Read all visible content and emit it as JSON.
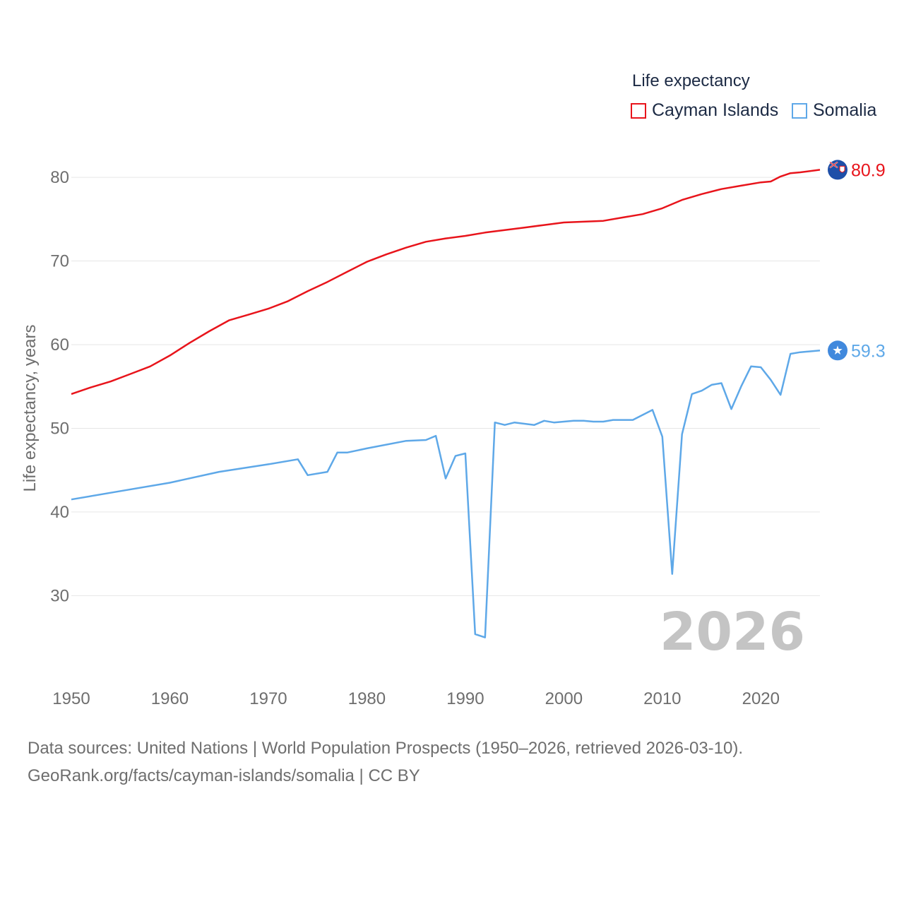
{
  "legend": {
    "title": "Life expectancy",
    "items": [
      {
        "label": "Cayman Islands",
        "color": "#e8141b"
      },
      {
        "label": "Somalia",
        "color": "#5ea8e8"
      }
    ]
  },
  "year_watermark": "2026",
  "source": {
    "line1": "Data sources: United Nations | World Population Prospects (1950–2026, retrieved 2026-03-10).",
    "line2": "GeoRank.org/facts/cayman-islands/somalia | CC BY"
  },
  "chart_data": {
    "type": "line",
    "title": "Life expectancy",
    "xlabel": "",
    "ylabel": "Life expectancy, years",
    "xlim": [
      1950,
      2026
    ],
    "ylim": [
      21,
      86
    ],
    "x_ticks": [
      1950,
      1960,
      1970,
      1980,
      1990,
      2000,
      2010,
      2020
    ],
    "y_ticks": [
      30,
      40,
      50,
      60,
      70,
      80
    ],
    "grid": true,
    "legend_position": "top-right",
    "series": [
      {
        "name": "Cayman Islands",
        "color": "#e8141b",
        "end_label": "80.9",
        "flag_icon": "cayman-islands-flag-icon",
        "points": [
          [
            1950,
            54.1
          ],
          [
            1952,
            54.9
          ],
          [
            1954,
            55.6
          ],
          [
            1956,
            56.5
          ],
          [
            1958,
            57.4
          ],
          [
            1960,
            58.7
          ],
          [
            1962,
            60.2
          ],
          [
            1964,
            61.6
          ],
          [
            1966,
            62.9
          ],
          [
            1968,
            63.6
          ],
          [
            1970,
            64.3
          ],
          [
            1972,
            65.2
          ],
          [
            1974,
            66.4
          ],
          [
            1976,
            67.5
          ],
          [
            1978,
            68.7
          ],
          [
            1980,
            69.9
          ],
          [
            1982,
            70.8
          ],
          [
            1984,
            71.6
          ],
          [
            1986,
            72.3
          ],
          [
            1988,
            72.7
          ],
          [
            1990,
            73.0
          ],
          [
            1992,
            73.4
          ],
          [
            1994,
            73.7
          ],
          [
            1996,
            74.0
          ],
          [
            1998,
            74.3
          ],
          [
            2000,
            74.6
          ],
          [
            2002,
            74.7
          ],
          [
            2004,
            74.8
          ],
          [
            2006,
            75.2
          ],
          [
            2008,
            75.6
          ],
          [
            2010,
            76.3
          ],
          [
            2012,
            77.3
          ],
          [
            2014,
            78.0
          ],
          [
            2016,
            78.6
          ],
          [
            2018,
            79.0
          ],
          [
            2020,
            79.4
          ],
          [
            2021,
            79.5
          ],
          [
            2022,
            80.1
          ],
          [
            2023,
            80.5
          ],
          [
            2024,
            80.6
          ],
          [
            2026,
            80.9
          ]
        ]
      },
      {
        "name": "Somalia",
        "color": "#5ea8e8",
        "end_label": "59.3",
        "flag_icon": "somalia-flag-icon",
        "points": [
          [
            1950,
            41.5
          ],
          [
            1955,
            42.5
          ],
          [
            1960,
            43.5
          ],
          [
            1965,
            44.8
          ],
          [
            1970,
            45.7
          ],
          [
            1973,
            46.3
          ],
          [
            1974,
            44.4
          ],
          [
            1976,
            44.8
          ],
          [
            1977,
            47.1
          ],
          [
            1978,
            47.1
          ],
          [
            1980,
            47.6
          ],
          [
            1984,
            48.5
          ],
          [
            1986,
            48.6
          ],
          [
            1987,
            49.1
          ],
          [
            1988,
            44.0
          ],
          [
            1989,
            46.7
          ],
          [
            1990,
            47.0
          ],
          [
            1991,
            25.4
          ],
          [
            1992,
            25.0
          ],
          [
            1993,
            50.7
          ],
          [
            1994,
            50.4
          ],
          [
            1995,
            50.7
          ],
          [
            1997,
            50.4
          ],
          [
            1998,
            50.9
          ],
          [
            1999,
            50.7
          ],
          [
            2001,
            50.9
          ],
          [
            2002,
            50.9
          ],
          [
            2003,
            50.8
          ],
          [
            2004,
            50.8
          ],
          [
            2005,
            51.0
          ],
          [
            2007,
            51.0
          ],
          [
            2009,
            52.2
          ],
          [
            2010,
            49.0
          ],
          [
            2011,
            32.6
          ],
          [
            2012,
            49.3
          ],
          [
            2013,
            54.1
          ],
          [
            2014,
            54.5
          ],
          [
            2015,
            55.2
          ],
          [
            2016,
            55.4
          ],
          [
            2017,
            52.3
          ],
          [
            2018,
            55.0
          ],
          [
            2019,
            57.4
          ],
          [
            2020,
            57.3
          ],
          [
            2021,
            55.8
          ],
          [
            2022,
            54.0
          ],
          [
            2023,
            58.9
          ],
          [
            2024,
            59.1
          ],
          [
            2025,
            59.2
          ],
          [
            2026,
            59.3
          ]
        ]
      }
    ]
  }
}
